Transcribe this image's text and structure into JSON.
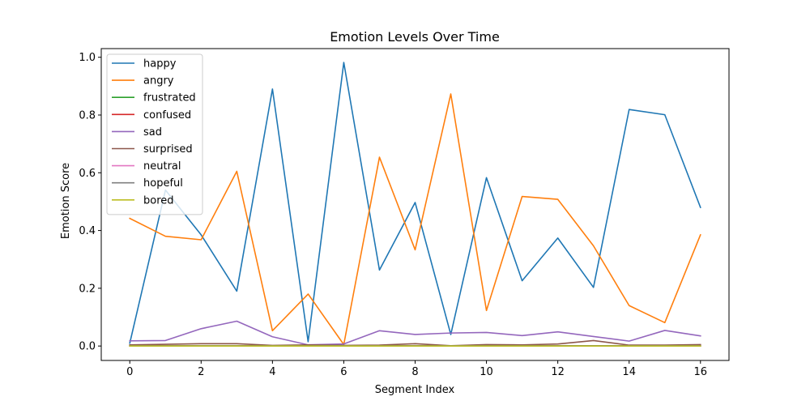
{
  "chart_data": {
    "type": "line",
    "title": "Emotion Levels Over Time",
    "xlabel": "Segment Index",
    "ylabel": "Emotion Score",
    "x": [
      0,
      1,
      2,
      3,
      4,
      5,
      6,
      7,
      8,
      9,
      10,
      11,
      12,
      13,
      14,
      15,
      16
    ],
    "xlim": [
      -0.8,
      16.8
    ],
    "ylim": [
      -0.05,
      1.03
    ],
    "xticks": [
      0,
      2,
      4,
      6,
      8,
      10,
      12,
      14,
      16
    ],
    "yticks": [
      0.0,
      0.2,
      0.4,
      0.6,
      0.8,
      1.0
    ],
    "ytick_labels": [
      "0.0",
      "0.2",
      "0.4",
      "0.6",
      "0.8",
      "1.0"
    ],
    "grid": false,
    "legend_position": "top-left",
    "series": [
      {
        "name": "happy",
        "color": "#1f77b4",
        "values": [
          0.01,
          0.54,
          0.385,
          0.19,
          0.89,
          0.015,
          0.982,
          0.263,
          0.497,
          0.04,
          0.583,
          0.226,
          0.374,
          0.203,
          0.819,
          0.801,
          0.48
        ]
      },
      {
        "name": "angry",
        "color": "#ff7f0e",
        "values": [
          0.442,
          0.38,
          0.368,
          0.605,
          0.053,
          0.18,
          0.005,
          0.654,
          0.333,
          0.873,
          0.123,
          0.518,
          0.508,
          0.347,
          0.14,
          0.081,
          0.385
        ]
      },
      {
        "name": "frustrated",
        "color": "#2ca02c",
        "values": [
          0,
          0,
          0,
          0,
          0,
          0,
          0,
          0,
          0,
          0,
          0,
          0,
          0,
          0,
          0,
          0,
          0
        ]
      },
      {
        "name": "confused",
        "color": "#d62728",
        "values": [
          0,
          0,
          0,
          0,
          0,
          0,
          0,
          0,
          0,
          0,
          0,
          0,
          0,
          0,
          0,
          0,
          0
        ]
      },
      {
        "name": "sad",
        "color": "#9467bd",
        "values": [
          0.018,
          0.019,
          0.06,
          0.086,
          0.032,
          0.004,
          0.007,
          0.053,
          0.04,
          0.045,
          0.047,
          0.036,
          0.049,
          0.033,
          0.017,
          0.054,
          0.035
        ]
      },
      {
        "name": "surprised",
        "color": "#8c564b",
        "values": [
          0.004,
          0.006,
          0.008,
          0.008,
          0.002,
          0.004,
          0.002,
          0.003,
          0.008,
          0.001,
          0.005,
          0.004,
          0.007,
          0.019,
          0.003,
          0.003,
          0.005
        ]
      },
      {
        "name": "neutral",
        "color": "#e377c2",
        "values": [
          0,
          0,
          0,
          0,
          0,
          0,
          0,
          0,
          0,
          0,
          0,
          0,
          0,
          0,
          0,
          0,
          0
        ]
      },
      {
        "name": "hopeful",
        "color": "#7f7f7f",
        "values": [
          0.001,
          0.001,
          0.001,
          0.001,
          0.001,
          0.001,
          0.001,
          0.001,
          0.001,
          0.001,
          0.001,
          0.001,
          0.001,
          0.001,
          0.001,
          0.001,
          0.001
        ]
      },
      {
        "name": "bored",
        "color": "#bcbd22",
        "values": [
          0,
          0,
          0,
          0,
          0,
          0,
          0,
          0,
          0,
          0,
          0,
          0,
          0,
          0,
          0,
          0,
          0
        ]
      }
    ]
  }
}
